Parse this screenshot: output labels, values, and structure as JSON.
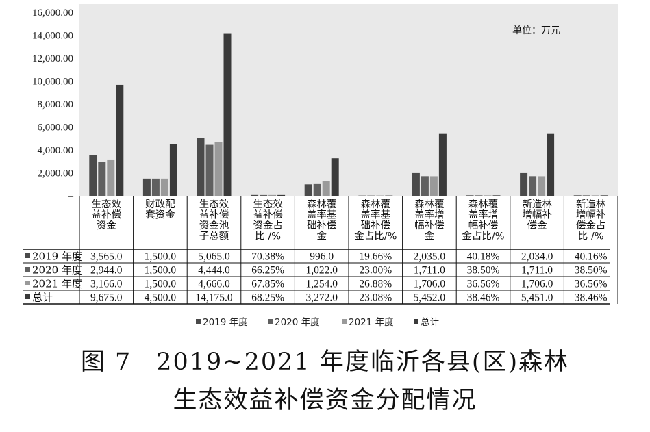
{
  "chart_data": {
    "type": "bar",
    "unit_note": "单位：万元",
    "y_ticks": [
      "–",
      "2,000.00",
      "4,000.00",
      "6,000.00",
      "8,000.00",
      "10,000.00",
      "12,000.00",
      "14,000.00",
      "16,000.00"
    ],
    "ylim": [
      0,
      16000
    ],
    "grid": false,
    "legend_position": "bottom",
    "categories": [
      "生态效益补偿资金",
      "财政配套资金",
      "生态效益补偿资金池子总额",
      "生态效益补偿资金占比/%",
      "森林覆盖率基础补偿金",
      "森林覆盖率基础补偿金占比/%",
      "森林覆盖率增幅补偿金",
      "森林覆盖率增幅补偿金占比/%",
      "新造林增幅补偿金",
      "新造林增幅补偿金占比/%"
    ],
    "category_lines": [
      [
        "生态效",
        "益补偿",
        "资金"
      ],
      [
        "财政配",
        "套资金"
      ],
      [
        "生态效",
        "益补偿",
        "资金池",
        "子总额"
      ],
      [
        "生态效",
        "益补偿",
        "资金占",
        "比 /%"
      ],
      [
        "森林覆",
        "盖率基",
        "础补偿",
        "金"
      ],
      [
        "森林覆",
        "盖率基",
        "础补偿",
        "金占比/%"
      ],
      [
        "森林覆",
        "盖率增",
        "幅补偿",
        "金"
      ],
      [
        "森林覆",
        "盖率增",
        "幅补偿",
        "金占比/%"
      ],
      [
        "新造林",
        "增幅补",
        "偿金"
      ],
      [
        "新造林",
        "增幅补",
        "偿金占",
        "比 /%"
      ]
    ],
    "series": [
      {
        "name": "2019 年度",
        "color": "#4a4a4a",
        "values": [
          3565.0,
          1500.0,
          5065.0,
          70.38,
          996.0,
          19.66,
          2035.0,
          40.18,
          2034.0,
          40.16
        ],
        "labels": [
          "3,565.0",
          "1,500.0",
          "5,065.0",
          "70.38%",
          "996.0",
          "19.66%",
          "2,035.0",
          "40.18%",
          "2,034.0",
          "40.16%"
        ]
      },
      {
        "name": "2020 年度",
        "color": "#606060",
        "values": [
          2944.0,
          1500.0,
          4444.0,
          66.25,
          1022.0,
          23.0,
          1711.0,
          38.5,
          1711.0,
          38.5
        ],
        "labels": [
          "2,944.0",
          "1,500.0",
          "4,444.0",
          "66.25%",
          "1,022.0",
          "23.00%",
          "1,711.0",
          "38.50%",
          "1,711.0",
          "38.50%"
        ]
      },
      {
        "name": "2021 年度",
        "color": "#9a9a9a",
        "values": [
          3166.0,
          1500.0,
          4666.0,
          67.85,
          1254.0,
          26.88,
          1706.0,
          36.56,
          1706.0,
          36.56
        ],
        "labels": [
          "3,166.0",
          "1,500.0",
          "4,666.0",
          "67.85%",
          "1,254.0",
          "26.88%",
          "1,706.0",
          "36.56%",
          "1,706.0",
          "36.56%"
        ]
      },
      {
        "name": "总计",
        "color": "#3a3a3a",
        "values": [
          9675.0,
          4500.0,
          14175.0,
          68.25,
          3272.0,
          23.08,
          5452.0,
          38.46,
          5451.0,
          38.46
        ],
        "labels": [
          "9,675.0",
          "4,500.0",
          "14,175.0",
          "68.25%",
          "3,272.0",
          "23.08%",
          "5,452.0",
          "38.46%",
          "5,451.0",
          "38.46%"
        ]
      }
    ]
  },
  "caption": {
    "figure_number": "图 7",
    "line1": "2019~2021 年度临沂各县(区)森林",
    "line2": "生态效益补偿资金分配情况"
  }
}
